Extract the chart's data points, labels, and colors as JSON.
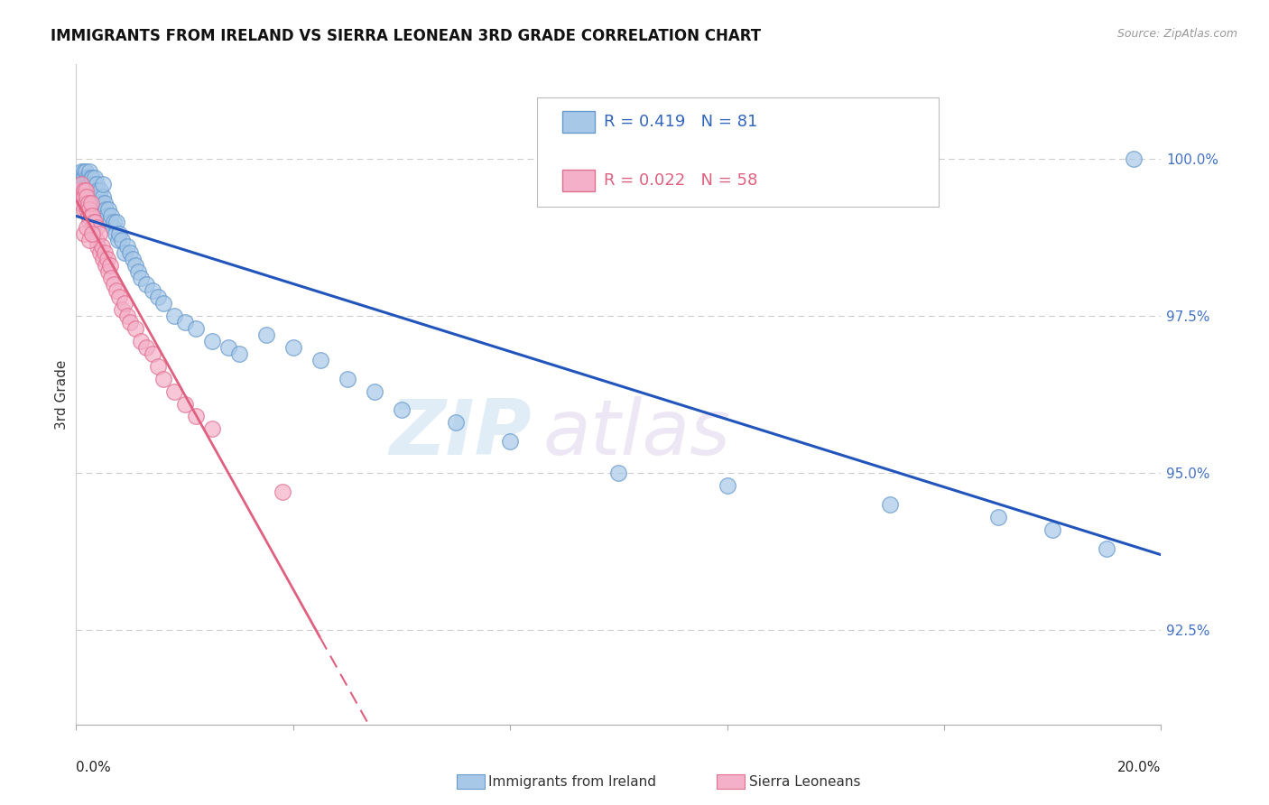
{
  "title": "IMMIGRANTS FROM IRELAND VS SIERRA LEONEAN 3RD GRADE CORRELATION CHART",
  "source": "Source: ZipAtlas.com",
  "ylabel": "3rd Grade",
  "right_yticks": [
    92.5,
    95.0,
    97.5,
    100.0
  ],
  "right_ytick_labels": [
    "92.5%",
    "95.0%",
    "97.5%",
    "100.0%"
  ],
  "xlim": [
    0.0,
    20.0
  ],
  "ylim": [
    91.0,
    101.5
  ],
  "ireland_color": "#a8c8e8",
  "ireland_edge": "#6699cc",
  "sierra_color": "#f4b0c8",
  "sierra_edge": "#e07090",
  "ireland_R": 0.419,
  "ireland_N": 81,
  "sierra_R": 0.022,
  "sierra_N": 58,
  "legend_label_ireland": "Immigrants from Ireland",
  "legend_label_sierra": "Sierra Leoneans",
  "watermark_zip": "ZIP",
  "watermark_atlas": "atlas",
  "ireland_x": [
    0.05,
    0.08,
    0.1,
    0.1,
    0.12,
    0.13,
    0.15,
    0.15,
    0.15,
    0.17,
    0.18,
    0.2,
    0.2,
    0.22,
    0.23,
    0.25,
    0.25,
    0.27,
    0.28,
    0.3,
    0.3,
    0.3,
    0.32,
    0.33,
    0.35,
    0.35,
    0.37,
    0.38,
    0.4,
    0.4,
    0.42,
    0.45,
    0.45,
    0.48,
    0.5,
    0.5,
    0.52,
    0.55,
    0.58,
    0.6,
    0.62,
    0.65,
    0.68,
    0.7,
    0.72,
    0.75,
    0.78,
    0.8,
    0.85,
    0.9,
    0.95,
    1.0,
    1.05,
    1.1,
    1.15,
    1.2,
    1.3,
    1.4,
    1.5,
    1.6,
    1.8,
    2.0,
    2.2,
    2.5,
    2.8,
    3.0,
    3.5,
    4.0,
    4.5,
    5.0,
    5.5,
    6.0,
    7.0,
    8.0,
    10.0,
    12.0,
    15.0,
    17.0,
    18.0,
    19.0,
    19.5
  ],
  "ireland_y": [
    99.6,
    99.7,
    99.8,
    99.5,
    99.6,
    99.7,
    99.8,
    99.6,
    99.7,
    99.5,
    99.8,
    99.6,
    99.7,
    99.5,
    99.7,
    99.6,
    99.8,
    99.5,
    99.7,
    99.5,
    99.6,
    99.7,
    99.4,
    99.6,
    99.5,
    99.7,
    99.4,
    99.6,
    99.3,
    99.5,
    99.4,
    99.2,
    99.5,
    99.3,
    99.4,
    99.6,
    99.3,
    99.2,
    99.1,
    99.2,
    99.0,
    99.1,
    98.9,
    99.0,
    98.8,
    99.0,
    98.7,
    98.8,
    98.7,
    98.5,
    98.6,
    98.5,
    98.4,
    98.3,
    98.2,
    98.1,
    98.0,
    97.9,
    97.8,
    97.7,
    97.5,
    97.4,
    97.3,
    97.1,
    97.0,
    96.9,
    97.2,
    97.0,
    96.8,
    96.5,
    96.3,
    96.0,
    95.8,
    95.5,
    95.0,
    94.8,
    94.5,
    94.3,
    94.1,
    93.8,
    100.0
  ],
  "sierra_x": [
    0.05,
    0.08,
    0.1,
    0.1,
    0.12,
    0.14,
    0.15,
    0.15,
    0.17,
    0.18,
    0.2,
    0.2,
    0.22,
    0.23,
    0.25,
    0.25,
    0.27,
    0.28,
    0.3,
    0.3,
    0.32,
    0.33,
    0.35,
    0.37,
    0.38,
    0.4,
    0.42,
    0.45,
    0.48,
    0.5,
    0.52,
    0.55,
    0.58,
    0.6,
    0.63,
    0.65,
    0.7,
    0.75,
    0.8,
    0.85,
    0.9,
    0.95,
    1.0,
    1.1,
    1.2,
    1.3,
    1.4,
    1.5,
    1.6,
    1.8,
    2.0,
    2.2,
    2.5,
    0.15,
    0.2,
    0.25,
    0.3,
    3.8
  ],
  "sierra_y": [
    99.4,
    99.5,
    99.3,
    99.6,
    99.4,
    99.5,
    99.2,
    99.4,
    99.3,
    99.5,
    99.2,
    99.4,
    99.1,
    99.3,
    99.0,
    99.2,
    99.1,
    99.3,
    98.9,
    99.1,
    99.0,
    98.8,
    99.0,
    98.7,
    98.9,
    98.6,
    98.8,
    98.5,
    98.6,
    98.4,
    98.5,
    98.3,
    98.4,
    98.2,
    98.3,
    98.1,
    98.0,
    97.9,
    97.8,
    97.6,
    97.7,
    97.5,
    97.4,
    97.3,
    97.1,
    97.0,
    96.9,
    96.7,
    96.5,
    96.3,
    96.1,
    95.9,
    95.7,
    98.8,
    98.9,
    98.7,
    98.8,
    94.7
  ]
}
